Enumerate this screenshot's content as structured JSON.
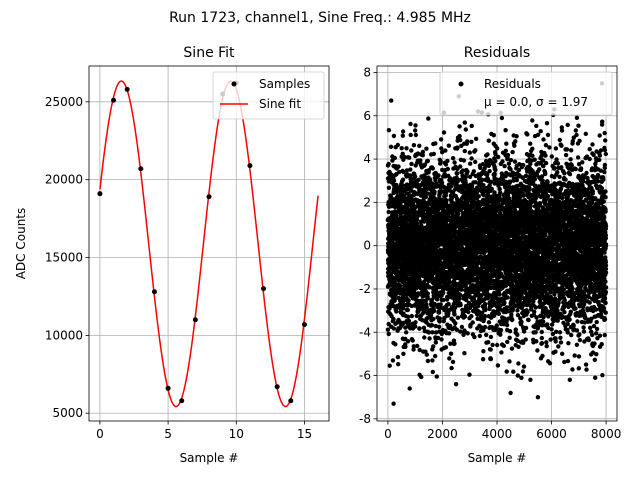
{
  "figure": {
    "title": "Run 1723, channel1, Sine Freq.: 4.985 MHz"
  },
  "chart_data": [
    {
      "type": "line",
      "title": "Sine Fit",
      "xlabel": "Sample #",
      "ylabel": "ADC Counts",
      "xlim": [
        -0.8,
        16.8
      ],
      "ylim": [
        4500,
        27300
      ],
      "xticks": [
        0,
        5,
        10,
        15
      ],
      "yticks": [
        5000,
        10000,
        15000,
        20000,
        25000
      ],
      "grid": true,
      "legend_location": "top-right",
      "legend": [
        "Samples",
        "Sine fit"
      ],
      "fit": {
        "amplitude": 10450,
        "offset": 15880,
        "period": 8.025,
        "phase_deg": 19.5,
        "x_range": [
          0,
          16
        ],
        "color": "#ff0000"
      },
      "series": [
        {
          "name": "Samples",
          "kind": "scatter",
          "color": "#000000",
          "x": [
            0,
            1,
            2,
            3,
            4,
            5,
            6,
            7,
            8,
            9,
            10,
            11,
            12,
            13,
            14,
            15
          ],
          "y": [
            19100,
            25100,
            25800,
            20700,
            12800,
            6600,
            5800,
            11000,
            18900,
            25500,
            26200,
            20900,
            13000,
            6700,
            5800,
            10700
          ]
        },
        {
          "name": "Sine fit",
          "kind": "line",
          "color": "#ff0000"
        }
      ]
    },
    {
      "type": "scatter",
      "title": "Residuals",
      "xlabel": "Sample #",
      "ylabel": "",
      "xlim": [
        -400,
        8400
      ],
      "ylim": [
        -8.1,
        8.3
      ],
      "xticks": [
        0,
        2000,
        4000,
        6000,
        8000
      ],
      "yticks": [
        -8,
        -6,
        -4,
        -2,
        0,
        2,
        4,
        6,
        8
      ],
      "grid": true,
      "legend_location": "top-right",
      "legend": [
        "Residuals",
        "μ = 0.0, σ = 1.97"
      ],
      "mean": 0.0,
      "std": 1.97,
      "n_samples": 8000,
      "color": "#000000",
      "notable_points": [
        {
          "x": 120,
          "y": 6.7
        },
        {
          "x": 210,
          "y": -7.3
        },
        {
          "x": 2600,
          "y": 6.9
        },
        {
          "x": 5500,
          "y": -7.0
        },
        {
          "x": 7850,
          "y": 7.5
        },
        {
          "x": 4500,
          "y": -6.8
        },
        {
          "x": 3300,
          "y": 6.2
        },
        {
          "x": 6100,
          "y": 6.3
        },
        {
          "x": 800,
          "y": -6.6
        },
        {
          "x": 2500,
          "y": -6.4
        },
        {
          "x": 7600,
          "y": -6.1
        },
        {
          "x": 7950,
          "y": 5.2
        }
      ]
    }
  ]
}
